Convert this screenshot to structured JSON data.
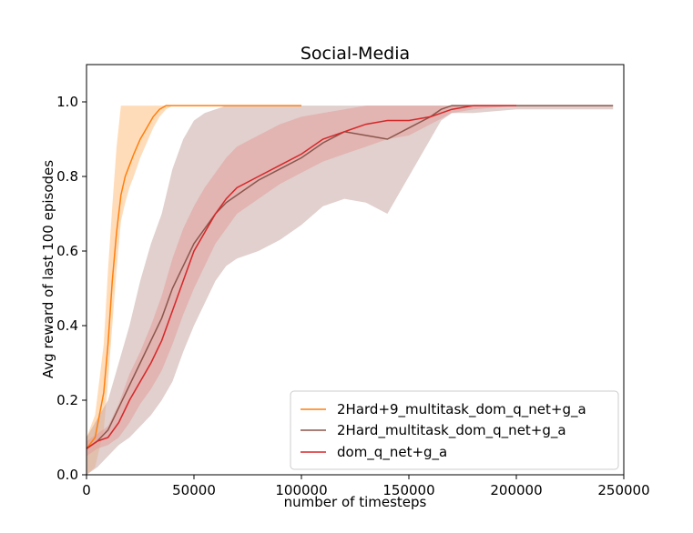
{
  "chart_data": {
    "type": "line",
    "title": "Social-Media",
    "xlabel": "number of timesteps",
    "ylabel": "Avg reward of last 100 episodes",
    "xlim": [
      0,
      250000
    ],
    "ylim": [
      0,
      1.1
    ],
    "xticks": [
      0,
      50000,
      100000,
      150000,
      200000,
      250000
    ],
    "xtick_labels": [
      "0",
      "50000",
      "100000",
      "150000",
      "200000",
      "250000"
    ],
    "yticks": [
      0.0,
      0.2,
      0.4,
      0.6,
      0.8,
      1.0
    ],
    "ytick_labels": [
      "0.0",
      "0.2",
      "0.4",
      "0.6",
      "0.8",
      "1.0"
    ],
    "legend_position": "lower-right",
    "series": [
      {
        "name": "2Hard+9_multitask_dom_q_net+g_a",
        "color": "#ff7f0e",
        "band_color": "#ffbf80",
        "x": [
          0,
          4000,
          8000,
          10000,
          12000,
          14000,
          16000,
          18000,
          20000,
          22000,
          25000,
          28000,
          31000,
          34000,
          37000,
          40000,
          50000,
          60000,
          80000,
          100000
        ],
        "mean": [
          0.07,
          0.1,
          0.22,
          0.35,
          0.52,
          0.65,
          0.75,
          0.8,
          0.83,
          0.86,
          0.9,
          0.93,
          0.96,
          0.98,
          0.99,
          0.99,
          0.99,
          0.99,
          0.99,
          0.99
        ],
        "lower": [
          0.0,
          0.02,
          0.12,
          0.25,
          0.4,
          0.55,
          0.68,
          0.73,
          0.77,
          0.8,
          0.85,
          0.89,
          0.93,
          0.96,
          0.98,
          0.99,
          0.99,
          0.99,
          0.99,
          0.99
        ],
        "upper": [
          0.1,
          0.16,
          0.35,
          0.55,
          0.72,
          0.88,
          0.99,
          0.99,
          0.99,
          0.99,
          0.99,
          0.99,
          0.99,
          0.99,
          0.99,
          0.99,
          0.99,
          0.99,
          0.99,
          0.99
        ]
      },
      {
        "name": "2Hard_multitask_dom_q_net+g_a",
        "color": "#8c564b",
        "band_color": "#c9aaa4",
        "x": [
          0,
          5000,
          10000,
          15000,
          20000,
          25000,
          30000,
          35000,
          40000,
          45000,
          50000,
          55000,
          60000,
          65000,
          70000,
          80000,
          90000,
          100000,
          110000,
          120000,
          130000,
          140000,
          150000,
          160000,
          165000,
          170000,
          180000,
          200000,
          220000,
          245000
        ],
        "mean": [
          0.07,
          0.09,
          0.12,
          0.18,
          0.24,
          0.3,
          0.36,
          0.42,
          0.5,
          0.56,
          0.62,
          0.66,
          0.7,
          0.73,
          0.75,
          0.79,
          0.82,
          0.85,
          0.89,
          0.92,
          0.91,
          0.9,
          0.93,
          0.96,
          0.98,
          0.99,
          0.99,
          0.99,
          0.99,
          0.99
        ],
        "lower": [
          0.0,
          0.02,
          0.05,
          0.08,
          0.1,
          0.13,
          0.16,
          0.2,
          0.25,
          0.33,
          0.4,
          0.46,
          0.52,
          0.56,
          0.58,
          0.6,
          0.63,
          0.67,
          0.72,
          0.74,
          0.73,
          0.7,
          0.8,
          0.9,
          0.95,
          0.97,
          0.97,
          0.98,
          0.98,
          0.98
        ],
        "upper": [
          0.1,
          0.15,
          0.2,
          0.3,
          0.4,
          0.52,
          0.62,
          0.7,
          0.82,
          0.9,
          0.95,
          0.97,
          0.98,
          0.99,
          0.99,
          0.99,
          0.99,
          0.99,
          0.99,
          0.99,
          0.99,
          0.99,
          0.99,
          0.99,
          0.99,
          0.99,
          0.99,
          0.99,
          0.99,
          0.99
        ]
      },
      {
        "name": "dom_q_net+g_a",
        "color": "#d62728",
        "band_color": "#e49c9c",
        "x": [
          0,
          5000,
          10000,
          15000,
          20000,
          25000,
          30000,
          35000,
          40000,
          45000,
          50000,
          55000,
          60000,
          65000,
          70000,
          80000,
          90000,
          100000,
          110000,
          120000,
          130000,
          140000,
          150000,
          160000,
          170000,
          180000,
          200000
        ],
        "mean": [
          0.07,
          0.09,
          0.1,
          0.14,
          0.2,
          0.25,
          0.3,
          0.36,
          0.44,
          0.52,
          0.6,
          0.65,
          0.7,
          0.74,
          0.77,
          0.8,
          0.83,
          0.86,
          0.9,
          0.92,
          0.94,
          0.95,
          0.95,
          0.96,
          0.98,
          0.99,
          0.99
        ],
        "lower": [
          0.05,
          0.07,
          0.08,
          0.1,
          0.14,
          0.19,
          0.23,
          0.28,
          0.35,
          0.43,
          0.5,
          0.56,
          0.62,
          0.66,
          0.7,
          0.74,
          0.78,
          0.81,
          0.84,
          0.86,
          0.88,
          0.9,
          0.91,
          0.94,
          0.97,
          0.98,
          0.99
        ],
        "upper": [
          0.09,
          0.11,
          0.13,
          0.19,
          0.27,
          0.33,
          0.4,
          0.48,
          0.58,
          0.66,
          0.72,
          0.77,
          0.81,
          0.85,
          0.88,
          0.91,
          0.94,
          0.96,
          0.97,
          0.98,
          0.99,
          0.99,
          0.99,
          0.99,
          0.99,
          0.99,
          0.99
        ]
      }
    ]
  }
}
